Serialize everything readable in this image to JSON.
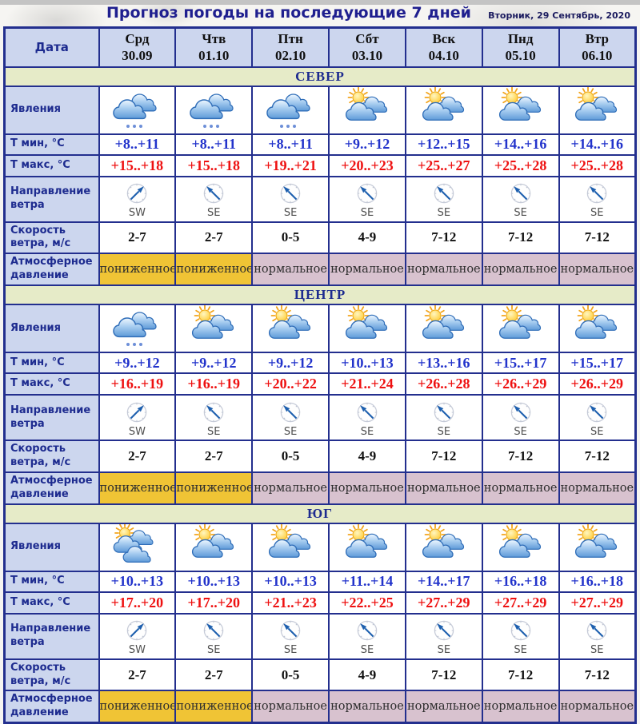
{
  "page": {
    "title": "Прогноз погоды на последующие 7 дней",
    "date": "Вторник, 29 Сентябрь, 2020"
  },
  "colors": {
    "border": "#232f8e",
    "title": "#1f1f8f",
    "label": "#1d2b8f",
    "head-bg": "#ccd6ee",
    "section-bg": "#e6ebc8",
    "low-bg": "#f0c435",
    "normal-bg": "#d8c2cf",
    "tmin": "#2233cb",
    "tmax": "#ee1111"
  },
  "icon_legend": {
    "cloud-drizzle": "clouds-with-drizzle-icon",
    "sun-cloud": "sun-behind-clouds-icon",
    "sun-overcast": "sun-behind-many-clouds-icon",
    "compass": "wind-compass-arrow-icon"
  },
  "table": {
    "date_label": "Дата",
    "columns": [
      {
        "day": "Срд",
        "date": "30.09"
      },
      {
        "day": "Чтв",
        "date": "01.10"
      },
      {
        "day": "Птн",
        "date": "02.10"
      },
      {
        "day": "Сбт",
        "date": "03.10"
      },
      {
        "day": "Вск",
        "date": "04.10"
      },
      {
        "day": "Пнд",
        "date": "05.10"
      },
      {
        "day": "Втр",
        "date": "06.10"
      }
    ],
    "row_labels": {
      "phenomena": "Явления",
      "t_min": "Т мин, °С",
      "t_max": "Т макс, °С",
      "wind_dir": "Направление ветра",
      "wind_speed": "Скорость ветра, м/с",
      "pressure": "Атмосферное давление"
    },
    "sections": [
      {
        "name": "СЕВЕР",
        "phenomena": [
          "cloud-drizzle",
          "cloud-drizzle",
          "cloud-drizzle",
          "sun-cloud",
          "sun-cloud",
          "sun-cloud",
          "sun-cloud"
        ],
        "t_min": [
          "+8..+11",
          "+8..+11",
          "+8..+11",
          "+9..+12",
          "+12..+15",
          "+14..+16",
          "+14..+16"
        ],
        "t_max": [
          "+15..+18",
          "+15..+18",
          "+19..+21",
          "+20..+23",
          "+25..+27",
          "+25..+28",
          "+25..+28"
        ],
        "wind_dir": [
          "SW",
          "SE",
          "SE",
          "SE",
          "SE",
          "SE",
          "SE"
        ],
        "wind_speed": [
          "2-7",
          "2-7",
          "0-5",
          "4-9",
          "7-12",
          "7-12",
          "7-12"
        ],
        "pressure": [
          {
            "label": "пониженное",
            "level": "low"
          },
          {
            "label": "пониженное",
            "level": "low"
          },
          {
            "label": "нормальное",
            "level": "normal"
          },
          {
            "label": "нормальное",
            "level": "normal"
          },
          {
            "label": "нормальное",
            "level": "normal"
          },
          {
            "label": "нормальное",
            "level": "normal"
          },
          {
            "label": "нормальное",
            "level": "normal"
          }
        ]
      },
      {
        "name": "ЦЕНТР",
        "phenomena": [
          "cloud-drizzle",
          "sun-cloud",
          "sun-cloud",
          "sun-cloud",
          "sun-cloud",
          "sun-cloud",
          "sun-cloud"
        ],
        "t_min": [
          "+9..+12",
          "+9..+12",
          "+9..+12",
          "+10..+13",
          "+13..+16",
          "+15..+17",
          "+15..+17"
        ],
        "t_max": [
          "+16..+19",
          "+16..+19",
          "+20..+22",
          "+21..+24",
          "+26..+28",
          "+26..+29",
          "+26..+29"
        ],
        "wind_dir": [
          "SW",
          "SE",
          "SE",
          "SE",
          "SE",
          "SE",
          "SE"
        ],
        "wind_speed": [
          "2-7",
          "2-7",
          "0-5",
          "4-9",
          "7-12",
          "7-12",
          "7-12"
        ],
        "pressure": [
          {
            "label": "пониженное",
            "level": "low"
          },
          {
            "label": "пониженное",
            "level": "low"
          },
          {
            "label": "нормальное",
            "level": "normal"
          },
          {
            "label": "нормальное",
            "level": "normal"
          },
          {
            "label": "нормальное",
            "level": "normal"
          },
          {
            "label": "нормальное",
            "level": "normal"
          },
          {
            "label": "нормальное",
            "level": "normal"
          }
        ]
      },
      {
        "name": "ЮГ",
        "phenomena": [
          "sun-overcast",
          "sun-cloud",
          "sun-cloud",
          "sun-cloud",
          "sun-cloud",
          "sun-cloud",
          "sun-cloud"
        ],
        "t_min": [
          "+10..+13",
          "+10..+13",
          "+10..+13",
          "+11..+14",
          "+14..+17",
          "+16..+18",
          "+16..+18"
        ],
        "t_max": [
          "+17..+20",
          "+17..+20",
          "+21..+23",
          "+22..+25",
          "+27..+29",
          "+27..+29",
          "+27..+29"
        ],
        "wind_dir": [
          "SW",
          "SE",
          "SE",
          "SE",
          "SE",
          "SE",
          "SE"
        ],
        "wind_speed": [
          "2-7",
          "2-7",
          "0-5",
          "4-9",
          "7-12",
          "7-12",
          "7-12"
        ],
        "pressure": [
          {
            "label": "пониженное",
            "level": "low"
          },
          {
            "label": "пониженное",
            "level": "low"
          },
          {
            "label": "нормальное",
            "level": "normal"
          },
          {
            "label": "нормальное",
            "level": "normal"
          },
          {
            "label": "нормальное",
            "level": "normal"
          },
          {
            "label": "нормальное",
            "level": "normal"
          },
          {
            "label": "нормальное",
            "level": "normal"
          }
        ]
      }
    ]
  }
}
